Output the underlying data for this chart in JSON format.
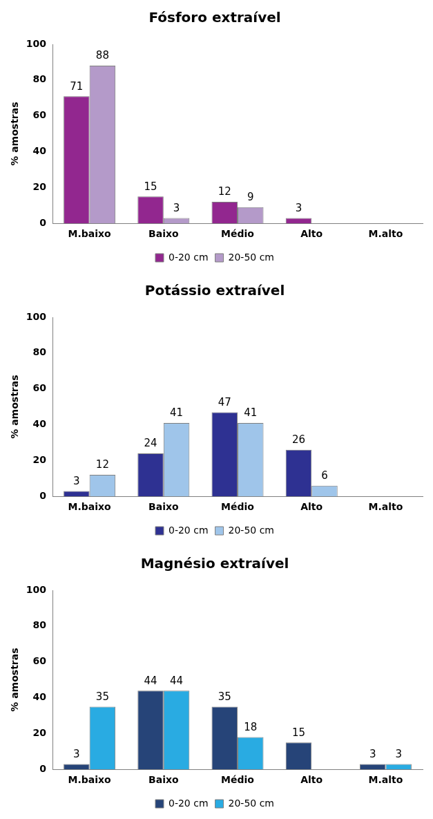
{
  "chart_data": [
    {
      "type": "bar",
      "title": "Fósforo extraível",
      "ylabel": "% amostras",
      "categories": [
        "M.baixo",
        "Baixo",
        "Médio",
        "Alto",
        "M.alto"
      ],
      "series": [
        {
          "name": "0-20 cm",
          "color": "#92278f",
          "values": [
            71,
            15,
            12,
            3,
            0
          ],
          "value_labels": [
            "71",
            "15",
            "12",
            "3",
            null
          ]
        },
        {
          "name": "20-50 cm",
          "color": "#b49ac9",
          "values": [
            88,
            3,
            9,
            0,
            0
          ],
          "value_labels": [
            "88",
            "3",
            "9",
            null,
            null
          ]
        }
      ],
      "ylim": [
        0,
        100
      ],
      "yticks": [
        0,
        20,
        40,
        60,
        80,
        100
      ],
      "grid": false,
      "legend": "bottom"
    },
    {
      "type": "bar",
      "title": "Potássio extraível",
      "ylabel": "% amostras",
      "categories": [
        "M.baixo",
        "Baixo",
        "Médio",
        "Alto",
        "M.alto"
      ],
      "series": [
        {
          "name": "0-20 cm",
          "color": "#2e3192",
          "values": [
            3,
            24,
            47,
            26,
            0
          ],
          "value_labels": [
            "3",
            "24",
            "47",
            "26",
            null
          ]
        },
        {
          "name": "20-50 cm",
          "color": "#9fc5ea",
          "values": [
            12,
            41,
            41,
            6,
            0
          ],
          "value_labels": [
            "12",
            "41",
            "41",
            "6",
            null
          ]
        }
      ],
      "ylim": [
        0,
        100
      ],
      "yticks": [
        0,
        20,
        40,
        60,
        80,
        100
      ],
      "grid": false,
      "legend": "bottom"
    },
    {
      "type": "bar",
      "title": "Magnésio extraível",
      "ylabel": "% amostras",
      "categories": [
        "M.baixo",
        "Baixo",
        "Médio",
        "Alto",
        "M.alto"
      ],
      "series": [
        {
          "name": "0-20 cm",
          "color": "#264478",
          "values": [
            3,
            44,
            35,
            15,
            3
          ],
          "value_labels": [
            "3",
            "44",
            "35",
            "15",
            "3"
          ]
        },
        {
          "name": "20-50 cm",
          "color": "#29abe2",
          "values": [
            35,
            44,
            18,
            0,
            3
          ],
          "value_labels": [
            "35",
            "44",
            "18",
            null,
            "3"
          ]
        }
      ],
      "ylim": [
        0,
        100
      ],
      "yticks": [
        0,
        20,
        40,
        60,
        80,
        100
      ],
      "grid": false,
      "legend": "bottom"
    }
  ]
}
